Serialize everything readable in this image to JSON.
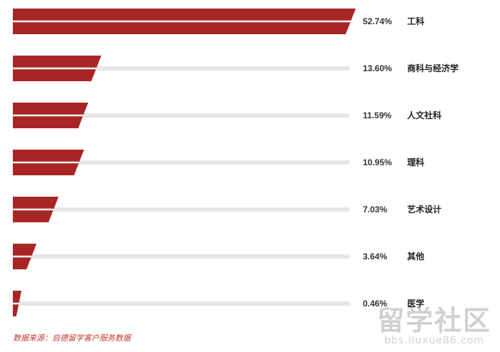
{
  "chart_data": {
    "type": "bar",
    "orientation": "horizontal",
    "categories": [
      "工科",
      "商科与经济学",
      "人文社科",
      "理科",
      "艺术设计",
      "其他",
      "医学"
    ],
    "values": [
      52.74,
      13.6,
      11.59,
      10.95,
      7.03,
      3.64,
      0.46
    ],
    "value_labels": [
      "52.74%",
      "13.60%",
      "11.59%",
      "10.95%",
      "7.03%",
      "3.64%",
      "0.46%"
    ],
    "xlim": [
      0,
      52.74
    ],
    "grid": false,
    "legend": "none"
  },
  "colors": {
    "bar": "#a82525",
    "track": "#e6e6e6"
  },
  "source": "数据来源：启德留学客户服务数据",
  "watermark": {
    "title": "留学社区",
    "url": "bbs.liuxue86.com"
  }
}
